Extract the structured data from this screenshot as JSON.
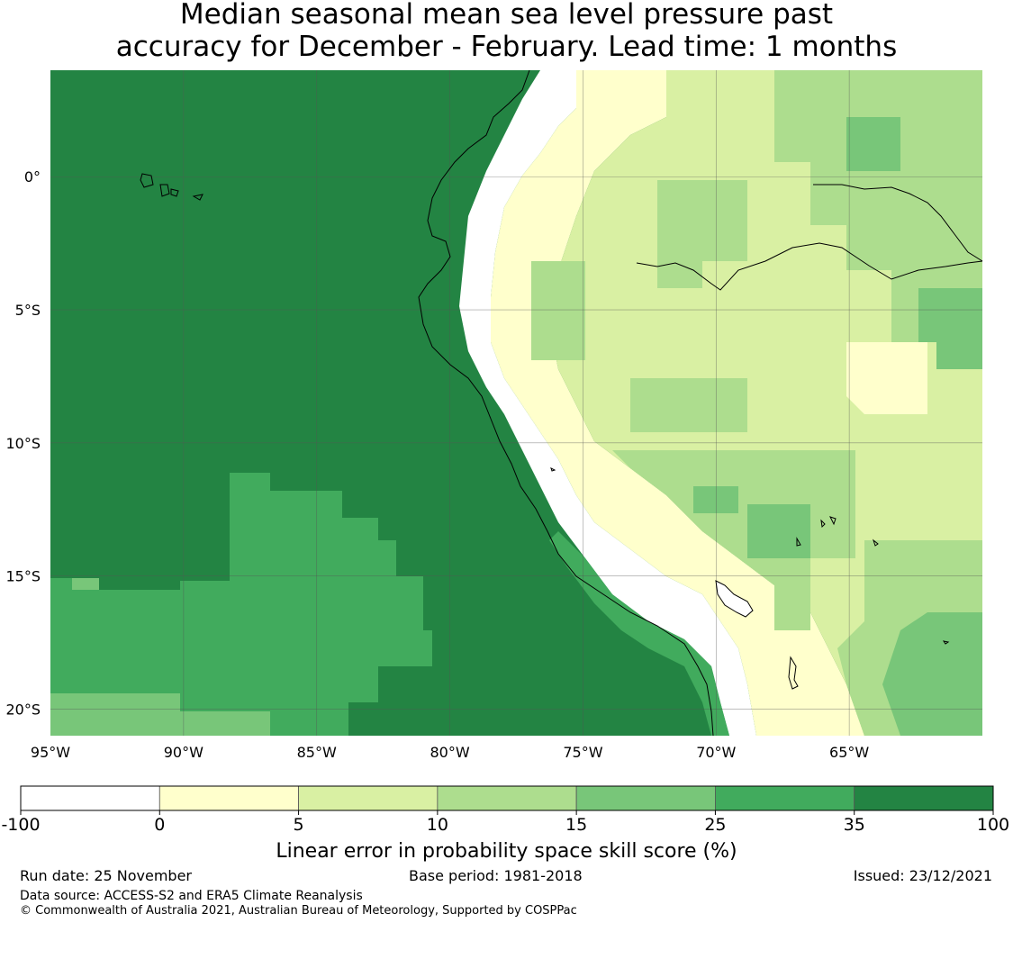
{
  "title": {
    "line1": "Median seasonal mean sea level pressure past",
    "line2": "accuracy for December - February. Lead time: 1 months"
  },
  "map": {
    "lat_labels": [
      "0°",
      "5°S",
      "10°S",
      "15°S",
      "20°S"
    ],
    "lon_labels": [
      "95°W",
      "90°W",
      "85°W",
      "80°W",
      "75°W",
      "70°W",
      "65°W"
    ],
    "lat_values": [
      0,
      -5,
      -10,
      -15,
      -20
    ],
    "lon_values": [
      -95,
      -90,
      -85,
      -80,
      -75,
      -70,
      -65
    ],
    "extent": {
      "lon_min": -95,
      "lon_max": -60,
      "lat_min": -21,
      "lat_max": 4
    },
    "colors": {
      "white": "#ffffff",
      "c0_5": "#ffffcc",
      "c5_10": "#d9f0a3",
      "c10_15": "#addd8e",
      "c15_25": "#78c679",
      "c25_35": "#41ab5d",
      "c35_100": "#238443",
      "grid": "#555555",
      "coast": "#000000"
    }
  },
  "colorbar": {
    "ticks": [
      "-100",
      "0",
      "5",
      "10",
      "15",
      "25",
      "35",
      "100"
    ],
    "colors": [
      "#ffffff",
      "#ffffcc",
      "#d9f0a3",
      "#addd8e",
      "#78c679",
      "#41ab5d",
      "#238443"
    ],
    "label": "Linear error in probability space skill score (%)"
  },
  "footer": {
    "run_date": "Run date: 25 November",
    "base_period": "Base period: 1981-2018",
    "issued": "Issued: 23/12/2021",
    "data_source": "Data source: ACCESS-S2 and ERA5 Climate Reanalysis",
    "copyright": "© Commonwealth of Australia 2021, Australian Bureau of Meteorology, Supported by COSPPac"
  }
}
